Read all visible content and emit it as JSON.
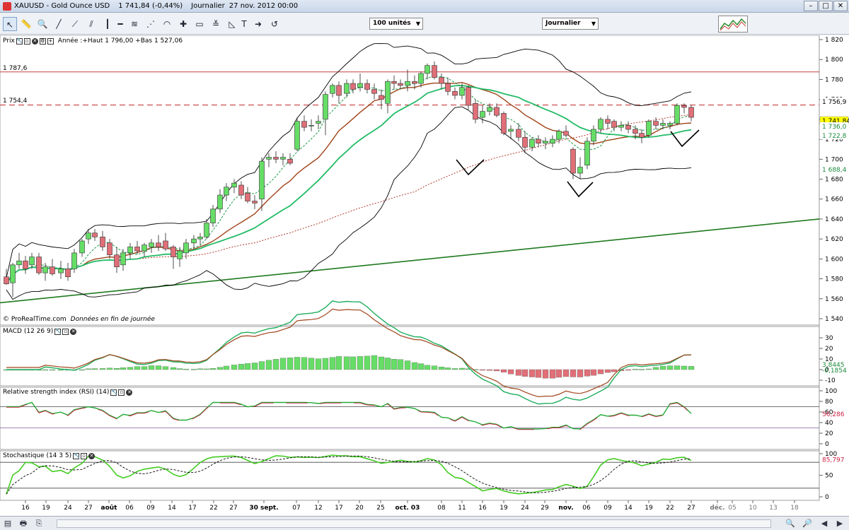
{
  "window": {
    "title": "XAUUSD - Gold Ounce USD",
    "price": "1 741,84 (-0,44%)",
    "period": "Journalier",
    "date": "27 nov. 2012 00:00"
  },
  "toolbar": {
    "units_select": "100 unités",
    "period_select": "Journalier"
  },
  "price_panel": {
    "label": "Prix",
    "info": "Année :+Haut 1 796,00 +Bas 1 527,06",
    "source": "© ProRealTime.com",
    "source_note": "Données en fin de journée",
    "hline_high_label": "1 787,6",
    "hline_dash_label": "1 754,4",
    "axis_ticks": [
      "1 820",
      "1 800",
      "1 780",
      "1 760",
      "1 740",
      "1 720",
      "1 700",
      "1 680",
      "1 660",
      "1 640",
      "1 620",
      "1 600",
      "1 580",
      "1 560",
      "1 540"
    ],
    "badges": [
      {
        "text": "1 756,9",
        "bg": "#ffffff",
        "fg": "#000000"
      },
      {
        "text": "1 741,84",
        "bg": "#ffff00",
        "fg": "#000000"
      },
      {
        "text": "1 736,0",
        "bg": "#ffffff",
        "fg": "#1c8a3c"
      },
      {
        "text": "1 722,8",
        "bg": "#ffffff",
        "fg": "#1c8a3c"
      },
      {
        "text": "1 688,4",
        "bg": "#ffffff",
        "fg": "#1c8a3c"
      }
    ]
  },
  "macd_panel": {
    "label": "MACD (12 26 9)",
    "axis_ticks": [
      "30",
      "20",
      "10",
      "0",
      "-10"
    ],
    "badges": [
      {
        "text": "3,8445",
        "fg": "#1c8a3c"
      },
      {
        "text": "-0,1854",
        "fg": "#1c8a3c"
      }
    ]
  },
  "rsi_panel": {
    "label": "Relative strength index (RSI) (14)",
    "axis_ticks": [
      "100",
      "80",
      "60",
      "40",
      "20",
      "0"
    ],
    "badge": "56,286"
  },
  "stoch_panel": {
    "label": "Stochastique (14 3 5)",
    "axis_ticks": [
      "100",
      "50",
      "0"
    ],
    "badge": "85,797"
  },
  "x_axis": {
    "labels": [
      "16",
      "19",
      "24",
      "27",
      "août",
      "06",
      "09",
      "14",
      "17",
      "22",
      "27",
      "30 sept.",
      "07",
      "12",
      "17",
      "20",
      "25",
      "oct. 03",
      "08",
      "11",
      "16",
      "19",
      "24",
      "29",
      "nov.",
      "06",
      "09",
      "14",
      "19",
      "22",
      "27",
      "déc.",
      "05",
      "10",
      "13",
      "18"
    ]
  },
  "colors": {
    "up": "#66dd66",
    "down": "#e06f78",
    "sma20": "#22bb66",
    "ema_brown": "#a0441a",
    "bollinger": "#000000",
    "trend": "#1f7a1f",
    "hline": "#c84040",
    "rsi": "#cc2244",
    "stoch_k": "#44cc22"
  }
}
